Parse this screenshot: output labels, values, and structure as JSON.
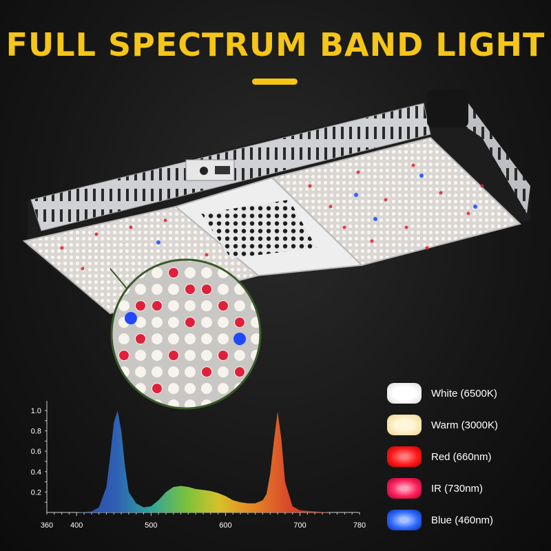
{
  "header": {
    "title": "FULL SPECTRUM BAND LIGHT"
  },
  "colors": {
    "accent": "#f5c518",
    "background": "#1a1a1a"
  },
  "product_image": {
    "icon": "grow-light-fixture-icon"
  },
  "legend": {
    "items": [
      {
        "label": "White (6500K)",
        "color": "#ffffff"
      },
      {
        "label": "Warm (3000K)",
        "color": "#fbe8b0"
      },
      {
        "label": "Red (660nm)",
        "color": "#ff1a1a"
      },
      {
        "label": "IR (730nm)",
        "color": "#ff1f5a"
      },
      {
        "label": "Blue (460nm)",
        "color": "#2f6bff"
      }
    ]
  },
  "chart_data": {
    "type": "area",
    "title": "",
    "xlabel": "",
    "ylabel": "",
    "xlim": [
      360,
      780
    ],
    "ylim": [
      0,
      1.0
    ],
    "x_ticks": [
      "360",
      "400",
      "500",
      "600",
      "700",
      "780"
    ],
    "y_ticks": [
      "1.0",
      "0.8",
      "0.6",
      "0.4",
      "0.2"
    ],
    "grid": false,
    "x": [
      360,
      400,
      420,
      430,
      440,
      445,
      450,
      455,
      460,
      465,
      470,
      480,
      490,
      500,
      510,
      520,
      530,
      540,
      550,
      560,
      570,
      580,
      590,
      600,
      610,
      620,
      630,
      640,
      650,
      655,
      660,
      665,
      670,
      675,
      680,
      690,
      700,
      720,
      740,
      780
    ],
    "values": [
      0,
      0,
      0.01,
      0.05,
      0.25,
      0.55,
      0.88,
      1.0,
      0.8,
      0.45,
      0.2,
      0.09,
      0.05,
      0.06,
      0.12,
      0.2,
      0.25,
      0.26,
      0.25,
      0.23,
      0.22,
      0.21,
      0.19,
      0.16,
      0.12,
      0.1,
      0.09,
      0.09,
      0.12,
      0.18,
      0.38,
      0.7,
      0.99,
      0.72,
      0.3,
      0.06,
      0.02,
      0.01,
      0,
      0
    ]
  }
}
